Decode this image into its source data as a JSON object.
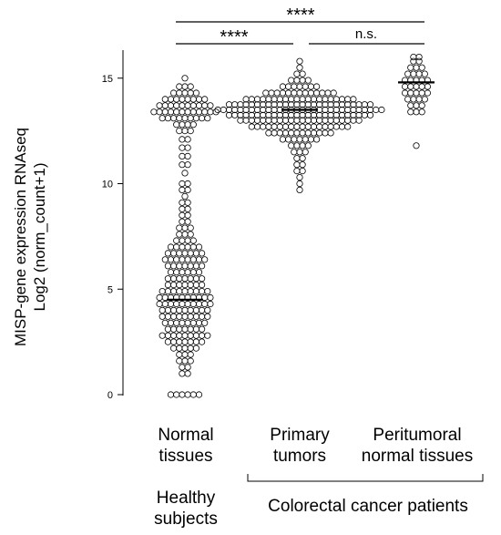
{
  "chart_data": {
    "type": "scatter",
    "subtype": "beeswarm",
    "ylabel_line1": "MISP-gene expression RNAseq",
    "ylabel_line2": "Log2 (norm_count+1)",
    "ylim": [
      0,
      16
    ],
    "yticks": [
      "0",
      "5",
      "10",
      "15"
    ],
    "categories": [
      {
        "line1": "Normal",
        "line2": "tissues"
      },
      {
        "line1": "Primary",
        "line2": "tumors"
      },
      {
        "line1": "Peritumoral",
        "line2": "normal tissues"
      }
    ],
    "groups": [
      {
        "line1": "Healthy",
        "line2": "subjects"
      },
      {
        "line1": "Colorectal cancer patients",
        "line2": ""
      }
    ],
    "significance": [
      {
        "label": "****",
        "from": "Normal tissues",
        "to": "Peritumoral normal tissues"
      },
      {
        "label": "****",
        "from": "Normal tissues",
        "to": "Primary tumors"
      },
      {
        "label": "n.s.",
        "from": "Primary tumors",
        "to": "Peritumoral normal tissues"
      }
    ],
    "series": [
      {
        "category": "Normal tissues",
        "median": 4.5,
        "distribution": [
          {
            "y": 0.0,
            "n": 6
          },
          {
            "y": 1.0,
            "n": 2
          },
          {
            "y": 1.3,
            "n": 2
          },
          {
            "y": 1.6,
            "n": 3
          },
          {
            "y": 1.9,
            "n": 3
          },
          {
            "y": 2.2,
            "n": 5
          },
          {
            "y": 2.5,
            "n": 7
          },
          {
            "y": 2.8,
            "n": 9
          },
          {
            "y": 3.1,
            "n": 7
          },
          {
            "y": 3.4,
            "n": 8
          },
          {
            "y": 3.7,
            "n": 9
          },
          {
            "y": 4.0,
            "n": 9
          },
          {
            "y": 4.3,
            "n": 10
          },
          {
            "y": 4.6,
            "n": 10
          },
          {
            "y": 4.9,
            "n": 9
          },
          {
            "y": 5.2,
            "n": 7
          },
          {
            "y": 5.5,
            "n": 7
          },
          {
            "y": 5.8,
            "n": 6
          },
          {
            "y": 6.1,
            "n": 7
          },
          {
            "y": 6.4,
            "n": 8
          },
          {
            "y": 6.7,
            "n": 7
          },
          {
            "y": 7.0,
            "n": 6
          },
          {
            "y": 7.3,
            "n": 4
          },
          {
            "y": 7.6,
            "n": 3
          },
          {
            "y": 7.9,
            "n": 3
          },
          {
            "y": 8.2,
            "n": 2
          },
          {
            "y": 8.5,
            "n": 2
          },
          {
            "y": 8.8,
            "n": 2
          },
          {
            "y": 9.1,
            "n": 2
          },
          {
            "y": 9.4,
            "n": 1
          },
          {
            "y": 9.7,
            "n": 2
          },
          {
            "y": 10.0,
            "n": 2
          },
          {
            "y": 10.5,
            "n": 1
          },
          {
            "y": 10.9,
            "n": 2
          },
          {
            "y": 11.3,
            "n": 2
          },
          {
            "y": 11.7,
            "n": 2
          },
          {
            "y": 12.1,
            "n": 2
          },
          {
            "y": 12.5,
            "n": 3
          },
          {
            "y": 12.8,
            "n": 4
          },
          {
            "y": 13.1,
            "n": 9
          },
          {
            "y": 13.4,
            "n": 12
          },
          {
            "y": 13.7,
            "n": 10
          },
          {
            "y": 14.0,
            "n": 8
          },
          {
            "y": 14.3,
            "n": 5
          },
          {
            "y": 14.6,
            "n": 3
          },
          {
            "y": 15.0,
            "n": 1
          }
        ]
      },
      {
        "category": "Primary tumors",
        "median": 13.5,
        "distribution": [
          {
            "y": 9.7,
            "n": 1
          },
          {
            "y": 10.0,
            "n": 1
          },
          {
            "y": 10.3,
            "n": 1
          },
          {
            "y": 10.6,
            "n": 2
          },
          {
            "y": 10.9,
            "n": 2
          },
          {
            "y": 11.2,
            "n": 2
          },
          {
            "y": 11.5,
            "n": 3
          },
          {
            "y": 11.8,
            "n": 4
          },
          {
            "y": 12.1,
            "n": 7
          },
          {
            "y": 12.4,
            "n": 12
          },
          {
            "y": 12.7,
            "n": 18
          },
          {
            "y": 13.0,
            "n": 22
          },
          {
            "y": 13.25,
            "n": 26
          },
          {
            "y": 13.5,
            "n": 30
          },
          {
            "y": 13.75,
            "n": 26
          },
          {
            "y": 14.0,
            "n": 20
          },
          {
            "y": 14.3,
            "n": 13
          },
          {
            "y": 14.6,
            "n": 7
          },
          {
            "y": 14.9,
            "n": 4
          },
          {
            "y": 15.2,
            "n": 2
          },
          {
            "y": 15.5,
            "n": 1
          },
          {
            "y": 15.8,
            "n": 1
          }
        ]
      },
      {
        "category": "Peritumoral normal tissues",
        "median": 14.8,
        "distribution": [
          {
            "y": 11.8,
            "n": 1
          },
          {
            "y": 13.4,
            "n": 3
          },
          {
            "y": 13.7,
            "n": 3
          },
          {
            "y": 14.0,
            "n": 4
          },
          {
            "y": 14.3,
            "n": 5
          },
          {
            "y": 14.6,
            "n": 5
          },
          {
            "y": 14.9,
            "n": 5
          },
          {
            "y": 15.2,
            "n": 4
          },
          {
            "y": 15.5,
            "n": 3
          },
          {
            "y": 15.8,
            "n": 2
          },
          {
            "y": 16.0,
            "n": 2
          }
        ]
      }
    ]
  }
}
